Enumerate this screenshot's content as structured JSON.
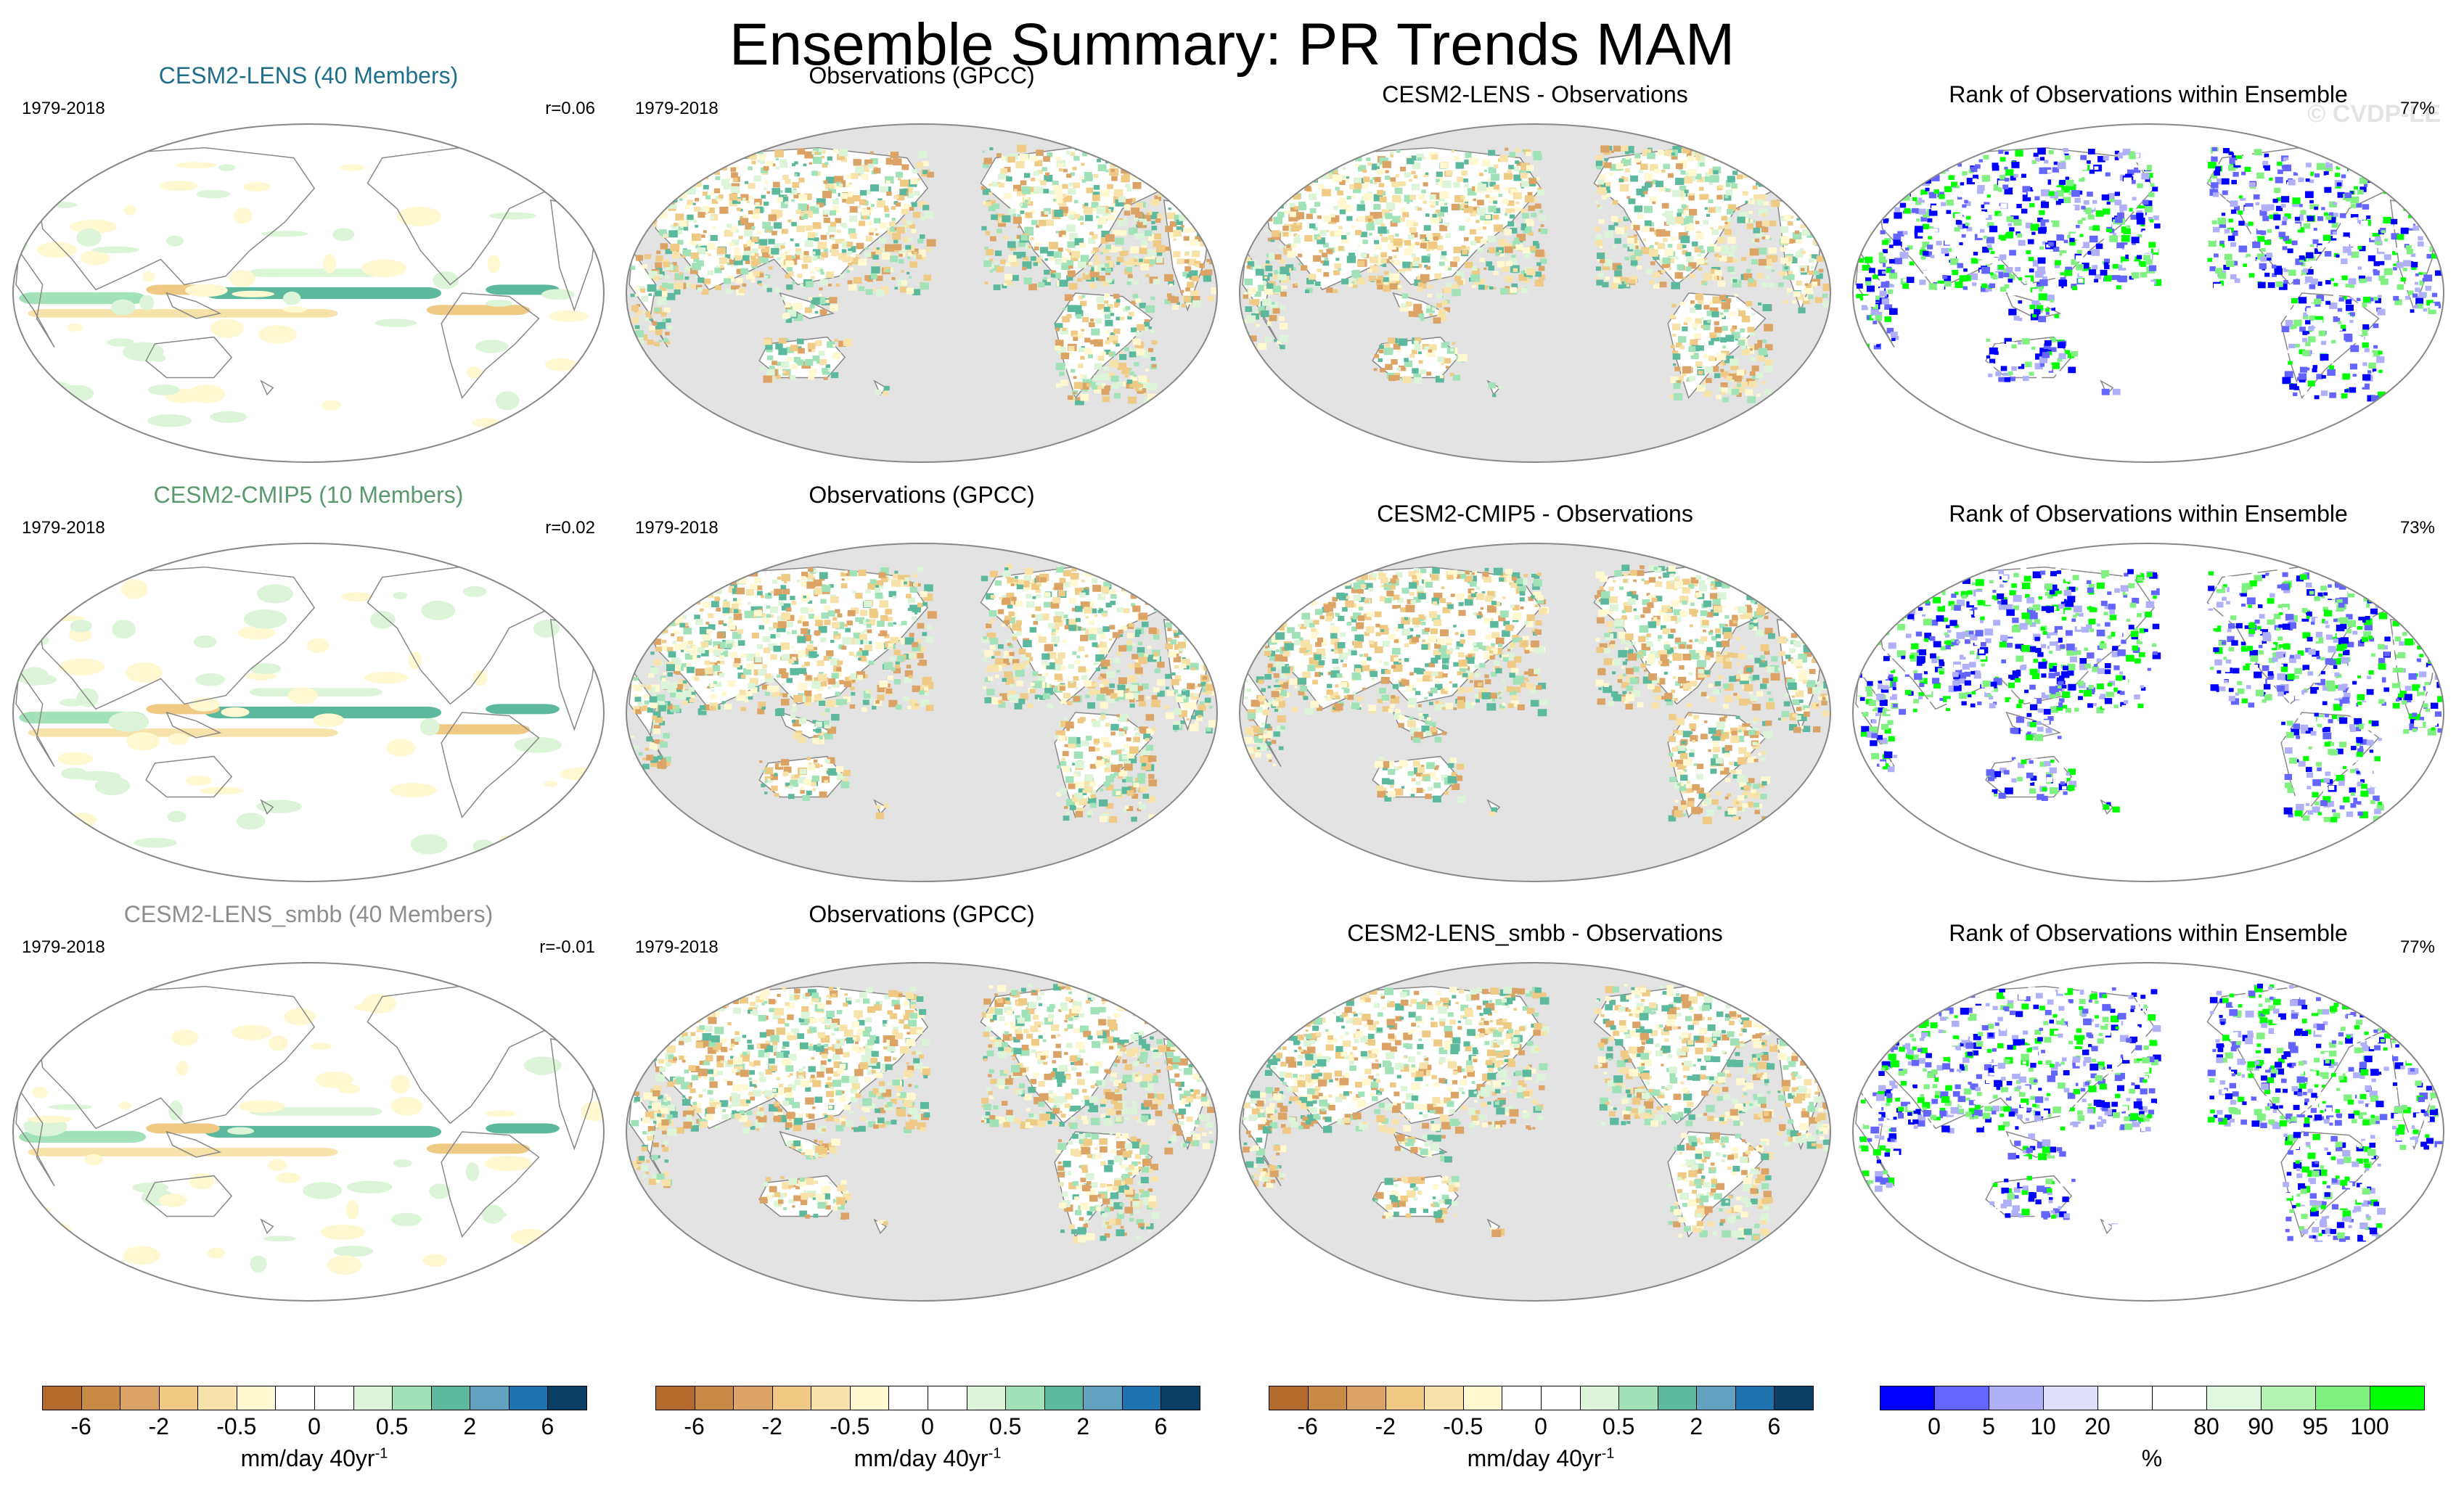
{
  "title": "Ensemble Summary: PR Trends MAM",
  "watermark": "© CVDP-LE",
  "rows": [
    {
      "model": {
        "title": "CESM2-LENS (40 Members)",
        "color": "#1f6f8b",
        "period": "1979-2018",
        "corr": "r=0.06"
      },
      "obs": {
        "title": "Observations (GPCC)",
        "period": "1979-2018"
      },
      "diff": {
        "title": "CESM2-LENS - Observations"
      },
      "rank": {
        "title": "Rank of Observations within Ensemble",
        "percent": "77%"
      }
    },
    {
      "model": {
        "title": "CESM2-CMIP5 (10 Members)",
        "color": "#5a9a6e",
        "period": "1979-2018",
        "corr": "r=0.02"
      },
      "obs": {
        "title": "Observations (GPCC)",
        "period": "1979-2018"
      },
      "diff": {
        "title": "CESM2-CMIP5 - Observations"
      },
      "rank": {
        "title": "Rank of Observations within Ensemble",
        "percent": "73%"
      }
    },
    {
      "model": {
        "title": "CESM2-LENS_smbb (40 Members)",
        "color": "#8e8e8e",
        "period": "1979-2018",
        "corr": "r=-0.01"
      },
      "obs": {
        "title": "Observations (GPCC)",
        "period": "1979-2018"
      },
      "diff": {
        "title": "CESM2-LENS_smbb - Observations"
      },
      "rank": {
        "title": "Rank of Observations within Ensemble",
        "percent": "77%"
      }
    }
  ],
  "trend_colorbar": {
    "colors": [
      "#b26a2d",
      "#c98a48",
      "#dba466",
      "#efca85",
      "#f7e2a9",
      "#fff8d0",
      "#ffffff",
      "#ffffff",
      "#dcf5d8",
      "#a2e2b9",
      "#5cb99e",
      "#62a1c0",
      "#1e72ad",
      "#0c3f66"
    ],
    "ticks": [
      "-6",
      "-2",
      "-0.5",
      "0",
      "0.5",
      "2",
      "6"
    ],
    "label": "mm/day 40yr",
    "label_sup": "-1"
  },
  "rank_colorbar": {
    "colors": [
      "#0000ff",
      "#6464ff",
      "#b0b0f8",
      "#dedef8",
      "#ffffff",
      "#ffffff",
      "#e0f8e0",
      "#b6f4b6",
      "#80f080",
      "#00ff00"
    ],
    "ticks": [
      "0",
      "5",
      "10",
      "20",
      "80",
      "90",
      "95",
      "100"
    ],
    "label": "%"
  },
  "chart_data": {
    "type": "map",
    "title": "Ensemble Summary: PR Trends MAM",
    "variable": "PR Trends",
    "season": "MAM",
    "panels": [
      {
        "row": 1,
        "col": 1,
        "title": "CESM2-LENS (40 Members)",
        "period": "1979-2018",
        "pattern_correlation": 0.06
      },
      {
        "row": 1,
        "col": 2,
        "title": "Observations (GPCC)",
        "period": "1979-2018"
      },
      {
        "row": 1,
        "col": 3,
        "title": "CESM2-LENS - Observations"
      },
      {
        "row": 1,
        "col": 4,
        "title": "Rank of Observations within Ensemble",
        "percent_within": 77
      },
      {
        "row": 2,
        "col": 1,
        "title": "CESM2-CMIP5 (10 Members)",
        "period": "1979-2018",
        "pattern_correlation": 0.02
      },
      {
        "row": 2,
        "col": 2,
        "title": "Observations (GPCC)",
        "period": "1979-2018"
      },
      {
        "row": 2,
        "col": 3,
        "title": "CESM2-CMIP5 - Observations"
      },
      {
        "row": 2,
        "col": 4,
        "title": "Rank of Observations within Ensemble",
        "percent_within": 73
      },
      {
        "row": 3,
        "col": 1,
        "title": "CESM2-LENS_smbb (40 Members)",
        "period": "1979-2018",
        "pattern_correlation": -0.01
      },
      {
        "row": 3,
        "col": 2,
        "title": "Observations (GPCC)",
        "period": "1979-2018"
      },
      {
        "row": 3,
        "col": 3,
        "title": "CESM2-LENS_smbb - Observations"
      },
      {
        "row": 3,
        "col": 4,
        "title": "Rank of Observations within Ensemble",
        "percent_within": 77
      }
    ],
    "trend_levels": [
      -6,
      -2,
      -0.5,
      0,
      0.5,
      2,
      6
    ],
    "trend_units": "mm/day 40yr-1",
    "rank_levels": [
      0,
      5,
      10,
      20,
      80,
      90,
      95,
      100
    ],
    "rank_units": "%"
  }
}
